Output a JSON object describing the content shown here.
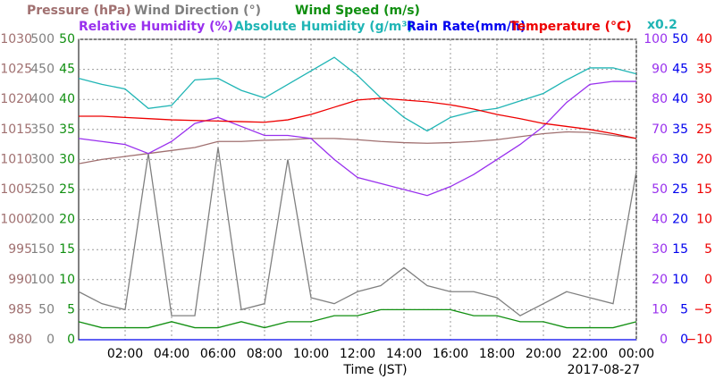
{
  "chart_data": {
    "type": "line",
    "x": [
      0,
      1,
      2,
      3,
      4,
      5,
      6,
      7,
      8,
      9,
      10,
      11,
      12,
      13,
      14,
      15,
      16,
      17,
      18,
      19,
      20,
      21,
      22,
      23,
      24
    ],
    "xlim": [
      0,
      24
    ],
    "xticks": [
      {
        "value": 2,
        "label": "02:00"
      },
      {
        "value": 4,
        "label": "04:00"
      },
      {
        "value": 6,
        "label": "06:00"
      },
      {
        "value": 8,
        "label": "08:00"
      },
      {
        "value": 10,
        "label": "10:00"
      },
      {
        "value": 12,
        "label": "12:00"
      },
      {
        "value": 14,
        "label": "14:00"
      },
      {
        "value": 16,
        "label": "16:00"
      },
      {
        "value": 18,
        "label": "18:00"
      },
      {
        "value": 20,
        "label": "20:00"
      },
      {
        "value": 22,
        "label": "22:00"
      },
      {
        "value": 24,
        "label": "00:00"
      }
    ],
    "x_label": "Time (JST)",
    "date": "2017-08-27",
    "grid": true,
    "axes": {
      "y": {
        "color": "#a07070",
        "lim": [
          980,
          1030
        ],
        "ticks": [
          980,
          985,
          990,
          995,
          1000,
          1005,
          1010,
          1015,
          1020,
          1025,
          1030
        ]
      },
      "y2": {
        "color": "#808080",
        "lim": [
          0,
          500
        ],
        "ticks": [
          0,
          50,
          100,
          150,
          200,
          250,
          300,
          350,
          400,
          450,
          500
        ]
      },
      "y3": {
        "color": "#108f10",
        "lim": [
          0,
          50
        ],
        "ticks": [
          0,
          5,
          10,
          15,
          20,
          25,
          30,
          35,
          40,
          45,
          50
        ]
      },
      "y4": {
        "color": "#9930ee",
        "lim": [
          0,
          100
        ],
        "ticks": [
          0,
          10,
          20,
          30,
          40,
          50,
          60,
          70,
          80,
          90,
          100
        ]
      },
      "y5": {
        "color": "#0000ee",
        "lim": [
          0,
          50
        ],
        "ticks": [
          0,
          5,
          10,
          15,
          20,
          25,
          30,
          35,
          40,
          45,
          50
        ]
      },
      "y6": {
        "color": "#ee0000",
        "lim": [
          -10,
          40
        ],
        "ticks": [
          {
            "value": -10,
            "label": "−10"
          },
          {
            "value": -5,
            "label": "−5"
          },
          0,
          5,
          10,
          15,
          20,
          25,
          30,
          35,
          40
        ]
      }
    },
    "series": [
      {
        "name": "Pressure (hPa)",
        "axis": "y",
        "color": "#a07070",
        "values": [
          1009.3,
          1010,
          1010.5,
          1011,
          1011.5,
          1012,
          1013,
          1013,
          1013.2,
          1013.3,
          1013.5,
          1013.5,
          1013.3,
          1013,
          1012.8,
          1012.7,
          1012.8,
          1013,
          1013.3,
          1013.8,
          1014.3,
          1014.6,
          1014.5,
          1014,
          1013.5
        ]
      },
      {
        "name": "Wind Direction (°)",
        "axis": "y2",
        "color": "#808080",
        "values": [
          80,
          60,
          50,
          310,
          40,
          40,
          320,
          50,
          60,
          300,
          70,
          60,
          80,
          90,
          120,
          90,
          80,
          80,
          70,
          40,
          60,
          80,
          70,
          60,
          280
        ]
      },
      {
        "name": "Wind Speed (m/s)",
        "axis": "y3",
        "color": "#108f10",
        "values": [
          3,
          2,
          2,
          2,
          3,
          2,
          2,
          3,
          2,
          3,
          3,
          4,
          4,
          5,
          5,
          5,
          5,
          4,
          4,
          3,
          3,
          2,
          2,
          2,
          3
        ]
      },
      {
        "name": "Relative Humidity (%)",
        "axis": "y4",
        "color": "#9930ee",
        "values": [
          67,
          66,
          65,
          62,
          66,
          72,
          74,
          71,
          68,
          68,
          67,
          60,
          54,
          52,
          50,
          48,
          51,
          55,
          60,
          65,
          71,
          79,
          85,
          86,
          86
        ]
      },
      {
        "name": "Absolute Humidity (g/m³)",
        "axis": "y4",
        "scale": 0.2,
        "scale_label": "x0.2",
        "color": "#20b5b5",
        "values": [
          17.4,
          17,
          16.7,
          15.4,
          15.6,
          17.3,
          17.4,
          16.6,
          16.1,
          17,
          17.9,
          18.8,
          17.6,
          16.1,
          14.8,
          13.9,
          14.8,
          15.2,
          15.4,
          15.9,
          16.4,
          17.3,
          18.1,
          18.1,
          17.7
        ]
      },
      {
        "name": "Rain Rate(mm/h)",
        "axis": "y5",
        "color": "#0000ee",
        "values": [
          0,
          0,
          0,
          0,
          0,
          0,
          0,
          0,
          0,
          0,
          0,
          0,
          0,
          0,
          0,
          0,
          0,
          0,
          0,
          0,
          0,
          0,
          0,
          0,
          0
        ]
      },
      {
        "name": "Temperature (°C)",
        "axis": "y6",
        "color": "#ee0000",
        "values": [
          27.2,
          27.2,
          27,
          26.8,
          26.6,
          26.5,
          26.4,
          26.3,
          26.2,
          26.6,
          27.5,
          28.7,
          29.9,
          30.2,
          29.9,
          29.6,
          29.1,
          28.4,
          27.5,
          26.8,
          26,
          25.5,
          25,
          24.3,
          23.5
        ]
      }
    ]
  }
}
